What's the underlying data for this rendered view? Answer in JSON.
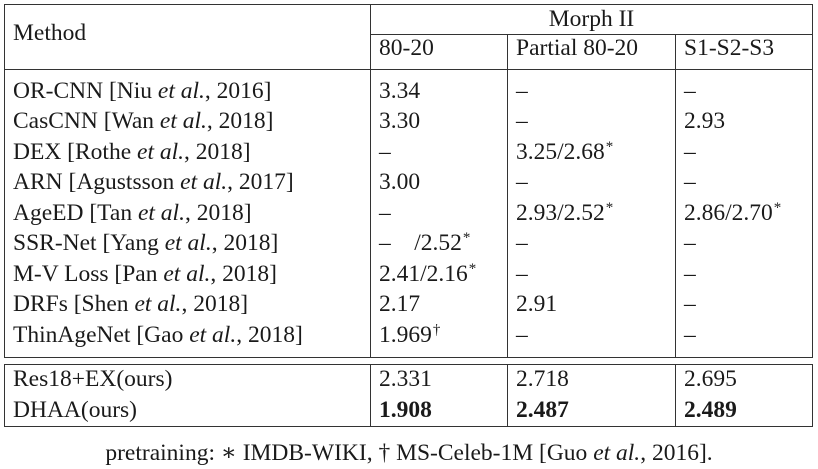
{
  "table": {
    "method_header": "Method",
    "dataset_header": "Morph II",
    "subheaders": [
      "80-20",
      "Partial 80-20",
      "S1-S2-S3"
    ],
    "rows": [
      {
        "name": "OR-CNN [Niu ",
        "etal": "et al.",
        "year": ", 2016]",
        "c1": "3.34",
        "c1sup": "",
        "c2": "–",
        "c2sup": "",
        "c3": "–",
        "c3sup": ""
      },
      {
        "name": "CasCNN [Wan ",
        "etal": "et al.",
        "year": ", 2018]",
        "c1": "3.30",
        "c1sup": "",
        "c2": "–",
        "c2sup": "",
        "c3": "2.93",
        "c3sup": ""
      },
      {
        "name": "DEX [Rothe ",
        "etal": "et al.",
        "year": ", 2018]",
        "c1": "–",
        "c1sup": "",
        "c2": "3.25/2.68",
        "c2sup": "*",
        "c3": "–",
        "c3sup": ""
      },
      {
        "name": "ARN [Agustsson ",
        "etal": "et al.",
        "year": ", 2017]",
        "c1": "3.00",
        "c1sup": "",
        "c2": "–",
        "c2sup": "",
        "c3": "–",
        "c3sup": ""
      },
      {
        "name": "AgeED [Tan ",
        "etal": "et al.",
        "year": ", 2018]",
        "c1": "–",
        "c1sup": "",
        "c2": "2.93/2.52",
        "c2sup": "*",
        "c3": "2.86/2.70",
        "c3sup": "*"
      },
      {
        "name": "SSR-Net [Yang ",
        "etal": "et al.",
        "year": ", 2018]",
        "c1": "–    /2.52",
        "c1sup": "*",
        "c2": "–",
        "c2sup": "",
        "c3": "–",
        "c3sup": ""
      },
      {
        "name": "M-V Loss [Pan ",
        "etal": "et al.",
        "year": ", 2018]",
        "c1": "2.41/2.16",
        "c1sup": "*",
        "c2": "–",
        "c2sup": "",
        "c3": "–",
        "c3sup": ""
      },
      {
        "name": "DRFs [Shen ",
        "etal": "et al.",
        "year": ", 2018]",
        "c1": "2.17",
        "c1sup": "",
        "c2": "2.91",
        "c2sup": "",
        "c3": "–",
        "c3sup": ""
      },
      {
        "name": "ThinAgeNet [Gao ",
        "etal": "et al.",
        "year": ", 2018]",
        "c1": "1.969",
        "c1sup": "†",
        "c2": "–",
        "c2sup": "",
        "c3": "–",
        "c3sup": ""
      }
    ],
    "ours": [
      {
        "name": "Res18+EX(ours)",
        "c1": "2.331",
        "c2": "2.718",
        "c3": "2.695"
      },
      {
        "name": "DHAA(ours)",
        "c1": "1.908",
        "c2": "2.487",
        "c3": "2.489"
      }
    ]
  },
  "caption": {
    "pre": "pretraining: ∗ IMDB-WIKI, † MS-Celeb-1M [Guo ",
    "etal": "et al.",
    "post": ", 2016]."
  }
}
